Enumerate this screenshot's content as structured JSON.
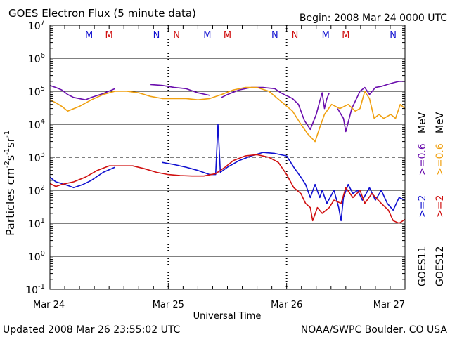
{
  "chart_data": {
    "type": "line",
    "title": "GOES Electron Flux (5 minute data)",
    "begin_label": "Begin: 2008 Mar 24 0000 UTC",
    "xlabel": "Universal Time",
    "ylabel_parts": [
      "Particles cm",
      "-2",
      "s",
      "-1",
      "sr",
      "-1"
    ],
    "footer_left": "Updated 2008 Mar 26 23:55:02 UTC",
    "footer_right": "NOAA/SWPC Boulder, CO USA",
    "x_range_days": [
      0,
      3
    ],
    "x_ticks": [
      {
        "day": 0,
        "label": "Mar 24"
      },
      {
        "day": 1,
        "label": "Mar 25"
      },
      {
        "day": 2,
        "label": "Mar 26"
      },
      {
        "day": 3,
        "label": "Mar 27"
      }
    ],
    "y_scale": "log",
    "ylim_exp": [
      -1,
      7
    ],
    "y_ticks": [
      {
        "exp": -1,
        "base": "10",
        "sup": "-1"
      },
      {
        "exp": 0,
        "base": "10",
        "sup": "0"
      },
      {
        "exp": 1,
        "base": "10",
        "sup": "1"
      },
      {
        "exp": 2,
        "base": "10",
        "sup": "2"
      },
      {
        "exp": 3,
        "base": "10",
        "sup": "3"
      },
      {
        "exp": 4,
        "base": "10",
        "sup": "4"
      },
      {
        "exp": 5,
        "base": "10",
        "sup": "5"
      },
      {
        "exp": 6,
        "base": "10",
        "sup": "6"
      },
      {
        "exp": 7,
        "base": "10",
        "sup": "7"
      }
    ],
    "solid_gridlines_exp": [
      1,
      2,
      4,
      5,
      6,
      0
    ],
    "threshold_line_exp": 3,
    "mn_markers": [
      {
        "day": 0.33,
        "label": "M",
        "color": "#1010d0"
      },
      {
        "day": 0.5,
        "label": "M",
        "color": "#d01010"
      },
      {
        "day": 0.9,
        "label": "N",
        "color": "#1010d0"
      },
      {
        "day": 1.07,
        "label": "N",
        "color": "#d01010"
      },
      {
        "day": 1.33,
        "label": "M",
        "color": "#1010d0"
      },
      {
        "day": 1.5,
        "label": "M",
        "color": "#d01010"
      },
      {
        "day": 1.9,
        "label": "N",
        "color": "#1010d0"
      },
      {
        "day": 2.07,
        "label": "N",
        "color": "#d01010"
      },
      {
        "day": 2.33,
        "label": "M",
        "color": "#1010d0"
      },
      {
        "day": 2.5,
        "label": "M",
        "color": "#d01010"
      },
      {
        "day": 2.9,
        "label": "N",
        "color": "#1010d0"
      },
      {
        "day": 3.07,
        "label": "N",
        "color": "#d01010"
      }
    ],
    "legend_satellites": [
      "GOES11",
      "GOES12"
    ],
    "legend_col1": [
      {
        "text": ">=2",
        "color": "#1010d0"
      },
      {
        "text": ">=2",
        "color": "#d01010"
      }
    ],
    "legend_col2": [
      {
        "text": ">=0.6",
        "color": "#6a0dad"
      },
      {
        "text": ">=0.6",
        "color": "#f0a010"
      }
    ],
    "legend_unit": "MeV",
    "series": [
      {
        "name": "GOES11 >=0.6 MeV",
        "color": "#6a0dad",
        "points": [
          [
            0.0,
            150000.0
          ],
          [
            0.05,
            130000.0
          ],
          [
            0.1,
            110000.0
          ],
          [
            0.15,
            80000.0
          ],
          [
            0.2,
            65000.0
          ],
          [
            0.3,
            55000.0
          ],
          [
            0.35,
            65000.0
          ],
          [
            0.45,
            85000.0
          ],
          [
            0.55,
            120000.0
          ],
          [
            null,
            null
          ],
          [
            0.85,
            160000.0
          ],
          [
            0.95,
            150000.0
          ],
          [
            1.05,
            130000.0
          ],
          [
            1.15,
            120000.0
          ],
          [
            1.25,
            90000.0
          ],
          [
            1.35,
            75000.0
          ],
          [
            null,
            null
          ],
          [
            1.45,
            65000.0
          ],
          [
            1.5,
            80000.0
          ],
          [
            1.6,
            110000.0
          ],
          [
            1.7,
            130000.0
          ],
          [
            1.8,
            130000.0
          ],
          [
            1.9,
            120000.0
          ],
          [
            1.95,
            90000.0
          ],
          [
            2.05,
            60000.0
          ],
          [
            2.1,
            40000.0
          ],
          [
            2.15,
            13000.0
          ],
          [
            2.2,
            7000.0
          ],
          [
            2.25,
            20000.0
          ],
          [
            2.28,
            50000.0
          ],
          [
            2.3,
            90000.0
          ],
          [
            2.32,
            30000.0
          ],
          [
            2.34,
            60000.0
          ],
          [
            2.36,
            90000.0
          ],
          [
            null,
            null
          ],
          [
            2.43,
            30000.0
          ],
          [
            2.48,
            15000.0
          ],
          [
            2.5,
            6000.0
          ],
          [
            2.55,
            30000.0
          ],
          [
            2.62,
            100000.0
          ],
          [
            2.66,
            130000.0
          ],
          [
            2.7,
            80000.0
          ],
          [
            2.75,
            130000.0
          ],
          [
            2.8,
            140000.0
          ],
          [
            2.85,
            160000.0
          ],
          [
            2.9,
            180000.0
          ],
          [
            2.95,
            200000.0
          ],
          [
            3.0,
            200000.0
          ]
        ]
      },
      {
        "name": "GOES12 >=0.6 MeV",
        "color": "#f0a010",
        "points": [
          [
            0.0,
            55000.0
          ],
          [
            0.05,
            45000.0
          ],
          [
            0.1,
            35000.0
          ],
          [
            0.15,
            25000.0
          ],
          [
            0.25,
            35000.0
          ],
          [
            0.35,
            55000.0
          ],
          [
            0.45,
            80000.0
          ],
          [
            0.55,
            100000.0
          ],
          [
            0.65,
            100000.0
          ],
          [
            0.75,
            90000.0
          ],
          [
            0.85,
            70000.0
          ],
          [
            0.95,
            60000.0
          ],
          [
            1.05,
            60000.0
          ],
          [
            1.15,
            60000.0
          ],
          [
            1.25,
            55000.0
          ],
          [
            1.35,
            60000.0
          ],
          [
            1.45,
            80000.0
          ],
          [
            1.55,
            110000.0
          ],
          [
            1.65,
            130000.0
          ],
          [
            1.75,
            130000.0
          ],
          [
            1.85,
            100000.0
          ],
          [
            1.95,
            50000.0
          ],
          [
            2.05,
            25000.0
          ],
          [
            2.12,
            10000.0
          ],
          [
            2.18,
            5000.0
          ],
          [
            2.24,
            3000.0
          ],
          [
            2.28,
            8000.0
          ],
          [
            2.32,
            20000.0
          ],
          [
            2.38,
            40000.0
          ],
          [
            2.45,
            30000.0
          ],
          [
            2.52,
            40000.0
          ],
          [
            2.58,
            25000.0
          ],
          [
            2.62,
            30000.0
          ],
          [
            2.66,
            100000.0
          ],
          [
            2.7,
            60000.0
          ],
          [
            2.74,
            15000.0
          ],
          [
            2.78,
            20000.0
          ],
          [
            2.82,
            15000.0
          ],
          [
            2.88,
            20000.0
          ],
          [
            2.92,
            15000.0
          ],
          [
            2.96,
            40000.0
          ],
          [
            3.0,
            30000.0
          ]
        ]
      },
      {
        "name": "GOES11 >=2 MeV",
        "color": "#1010d0",
        "points": [
          [
            0.0,
            250.0
          ],
          [
            0.05,
            180.0
          ],
          [
            0.1,
            160.0
          ],
          [
            0.15,
            140.0
          ],
          [
            0.2,
            120.0
          ],
          [
            0.28,
            150.0
          ],
          [
            0.35,
            200.0
          ],
          [
            0.45,
            350.0
          ],
          [
            0.55,
            500.0
          ],
          [
            null,
            null
          ],
          [
            0.95,
            700.0
          ],
          [
            1.05,
            600.0
          ],
          [
            1.15,
            500.0
          ],
          [
            1.25,
            400.0
          ],
          [
            1.35,
            300.0
          ],
          [
            1.4,
            300.0
          ],
          [
            1.42,
            10000.0
          ],
          [
            1.44,
            350.0
          ],
          [
            1.5,
            500.0
          ],
          [
            1.6,
            800.0
          ],
          [
            1.7,
            1100.0
          ],
          [
            1.8,
            1400.0
          ],
          [
            1.9,
            1300.0
          ],
          [
            2.0,
            1100.0
          ],
          [
            2.06,
            500.0
          ],
          [
            2.12,
            250.0
          ],
          [
            2.16,
            150.0
          ],
          [
            2.2,
            60.0
          ],
          [
            2.24,
            150.0
          ],
          [
            2.28,
            60.0
          ],
          [
            2.3,
            100.0
          ],
          [
            2.34,
            40.0
          ],
          [
            2.4,
            100.0
          ],
          [
            2.44,
            30.0
          ],
          [
            2.46,
            12.0
          ],
          [
            2.48,
            60.0
          ],
          [
            2.52,
            150.0
          ],
          [
            2.56,
            80.0
          ],
          [
            2.6,
            100.0
          ],
          [
            2.64,
            50.0
          ],
          [
            2.7,
            120.0
          ],
          [
            2.75,
            50.0
          ],
          [
            2.8,
            100.0
          ],
          [
            2.85,
            40.0
          ],
          [
            2.9,
            25.0
          ],
          [
            2.95,
            60.0
          ],
          [
            3.0,
            50.0
          ]
        ]
      },
      {
        "name": "GOES12 >=2 MeV",
        "color": "#d01010",
        "points": [
          [
            0.0,
            160.0
          ],
          [
            0.05,
            130.0
          ],
          [
            0.1,
            150.0
          ],
          [
            0.2,
            180.0
          ],
          [
            0.3,
            250.0
          ],
          [
            0.4,
            400.0
          ],
          [
            0.5,
            550.0
          ],
          [
            0.6,
            550.0
          ],
          [
            0.7,
            550.0
          ],
          [
            0.8,
            450.0
          ],
          [
            0.9,
            350.0
          ],
          [
            1.0,
            300.0
          ],
          [
            1.1,
            280.0
          ],
          [
            1.2,
            270.0
          ],
          [
            1.3,
            270.0
          ],
          [
            1.4,
            320.0
          ],
          [
            1.48,
            500.0
          ],
          [
            1.55,
            800.0
          ],
          [
            1.65,
            1100.0
          ],
          [
            1.75,
            1200.0
          ],
          [
            1.85,
            1000.0
          ],
          [
            1.93,
            700.0
          ],
          [
            2.0,
            300.0
          ],
          [
            2.06,
            120.0
          ],
          [
            2.12,
            80.0
          ],
          [
            2.16,
            40.0
          ],
          [
            2.2,
            30.0
          ],
          [
            2.22,
            12.0
          ],
          [
            2.26,
            30.0
          ],
          [
            2.3,
            20.0
          ],
          [
            2.36,
            30.0
          ],
          [
            2.4,
            50.0
          ],
          [
            2.46,
            40.0
          ],
          [
            2.5,
            120.0
          ],
          [
            2.56,
            60.0
          ],
          [
            2.62,
            100.0
          ],
          [
            2.66,
            40.0
          ],
          [
            2.72,
            80.0
          ],
          [
            2.8,
            40.0
          ],
          [
            2.86,
            25.0
          ],
          [
            2.9,
            12.0
          ],
          [
            2.95,
            10.0
          ],
          [
            3.0,
            13.0
          ]
        ]
      }
    ]
  }
}
